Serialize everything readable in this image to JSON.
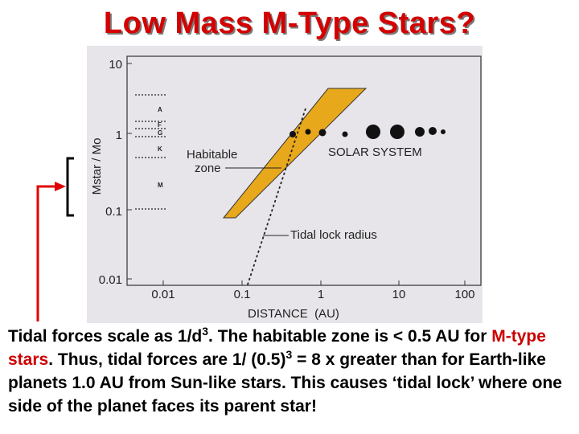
{
  "slide": {
    "title": "Low Mass M-Type Stars?"
  },
  "figure": {
    "y_axis_label": "Mstar / Mo",
    "x_axis_label": "DISTANCE  (AU)",
    "y_ticks": [
      "10",
      "1",
      "0.1",
      "0.01"
    ],
    "x_ticks": [
      "0.01",
      "0.1",
      "1",
      "10",
      "100"
    ],
    "spectral_types": [
      "A",
      "F",
      "G",
      "K",
      "M"
    ],
    "labels": {
      "habitable_zone_line1": "Habitable",
      "habitable_zone_line2": "zone",
      "solar_system": "SOLAR SYSTEM",
      "tidal_lock": "Tidal lock radius"
    },
    "colors": {
      "habitable_zone": "#e8a81c",
      "background": "#e7e5ea",
      "title": "#d40000",
      "pointer": "#e00000"
    }
  },
  "caption": {
    "p1": "Tidal forces scale as 1/d",
    "p1_sup": "3",
    "p2": ". The habitable zone is < 0.5 AU for ",
    "p3_highlight": "M-type stars",
    "p4": ". Thus, tidal forces are 1/ (0.5)",
    "p4_sup": "3",
    "p5": " = 8 x greater than for Earth-like planets 1.0 AU from Sun-like stars. This causes ‘tidal lock’ where one side of the planet faces its parent star!"
  }
}
